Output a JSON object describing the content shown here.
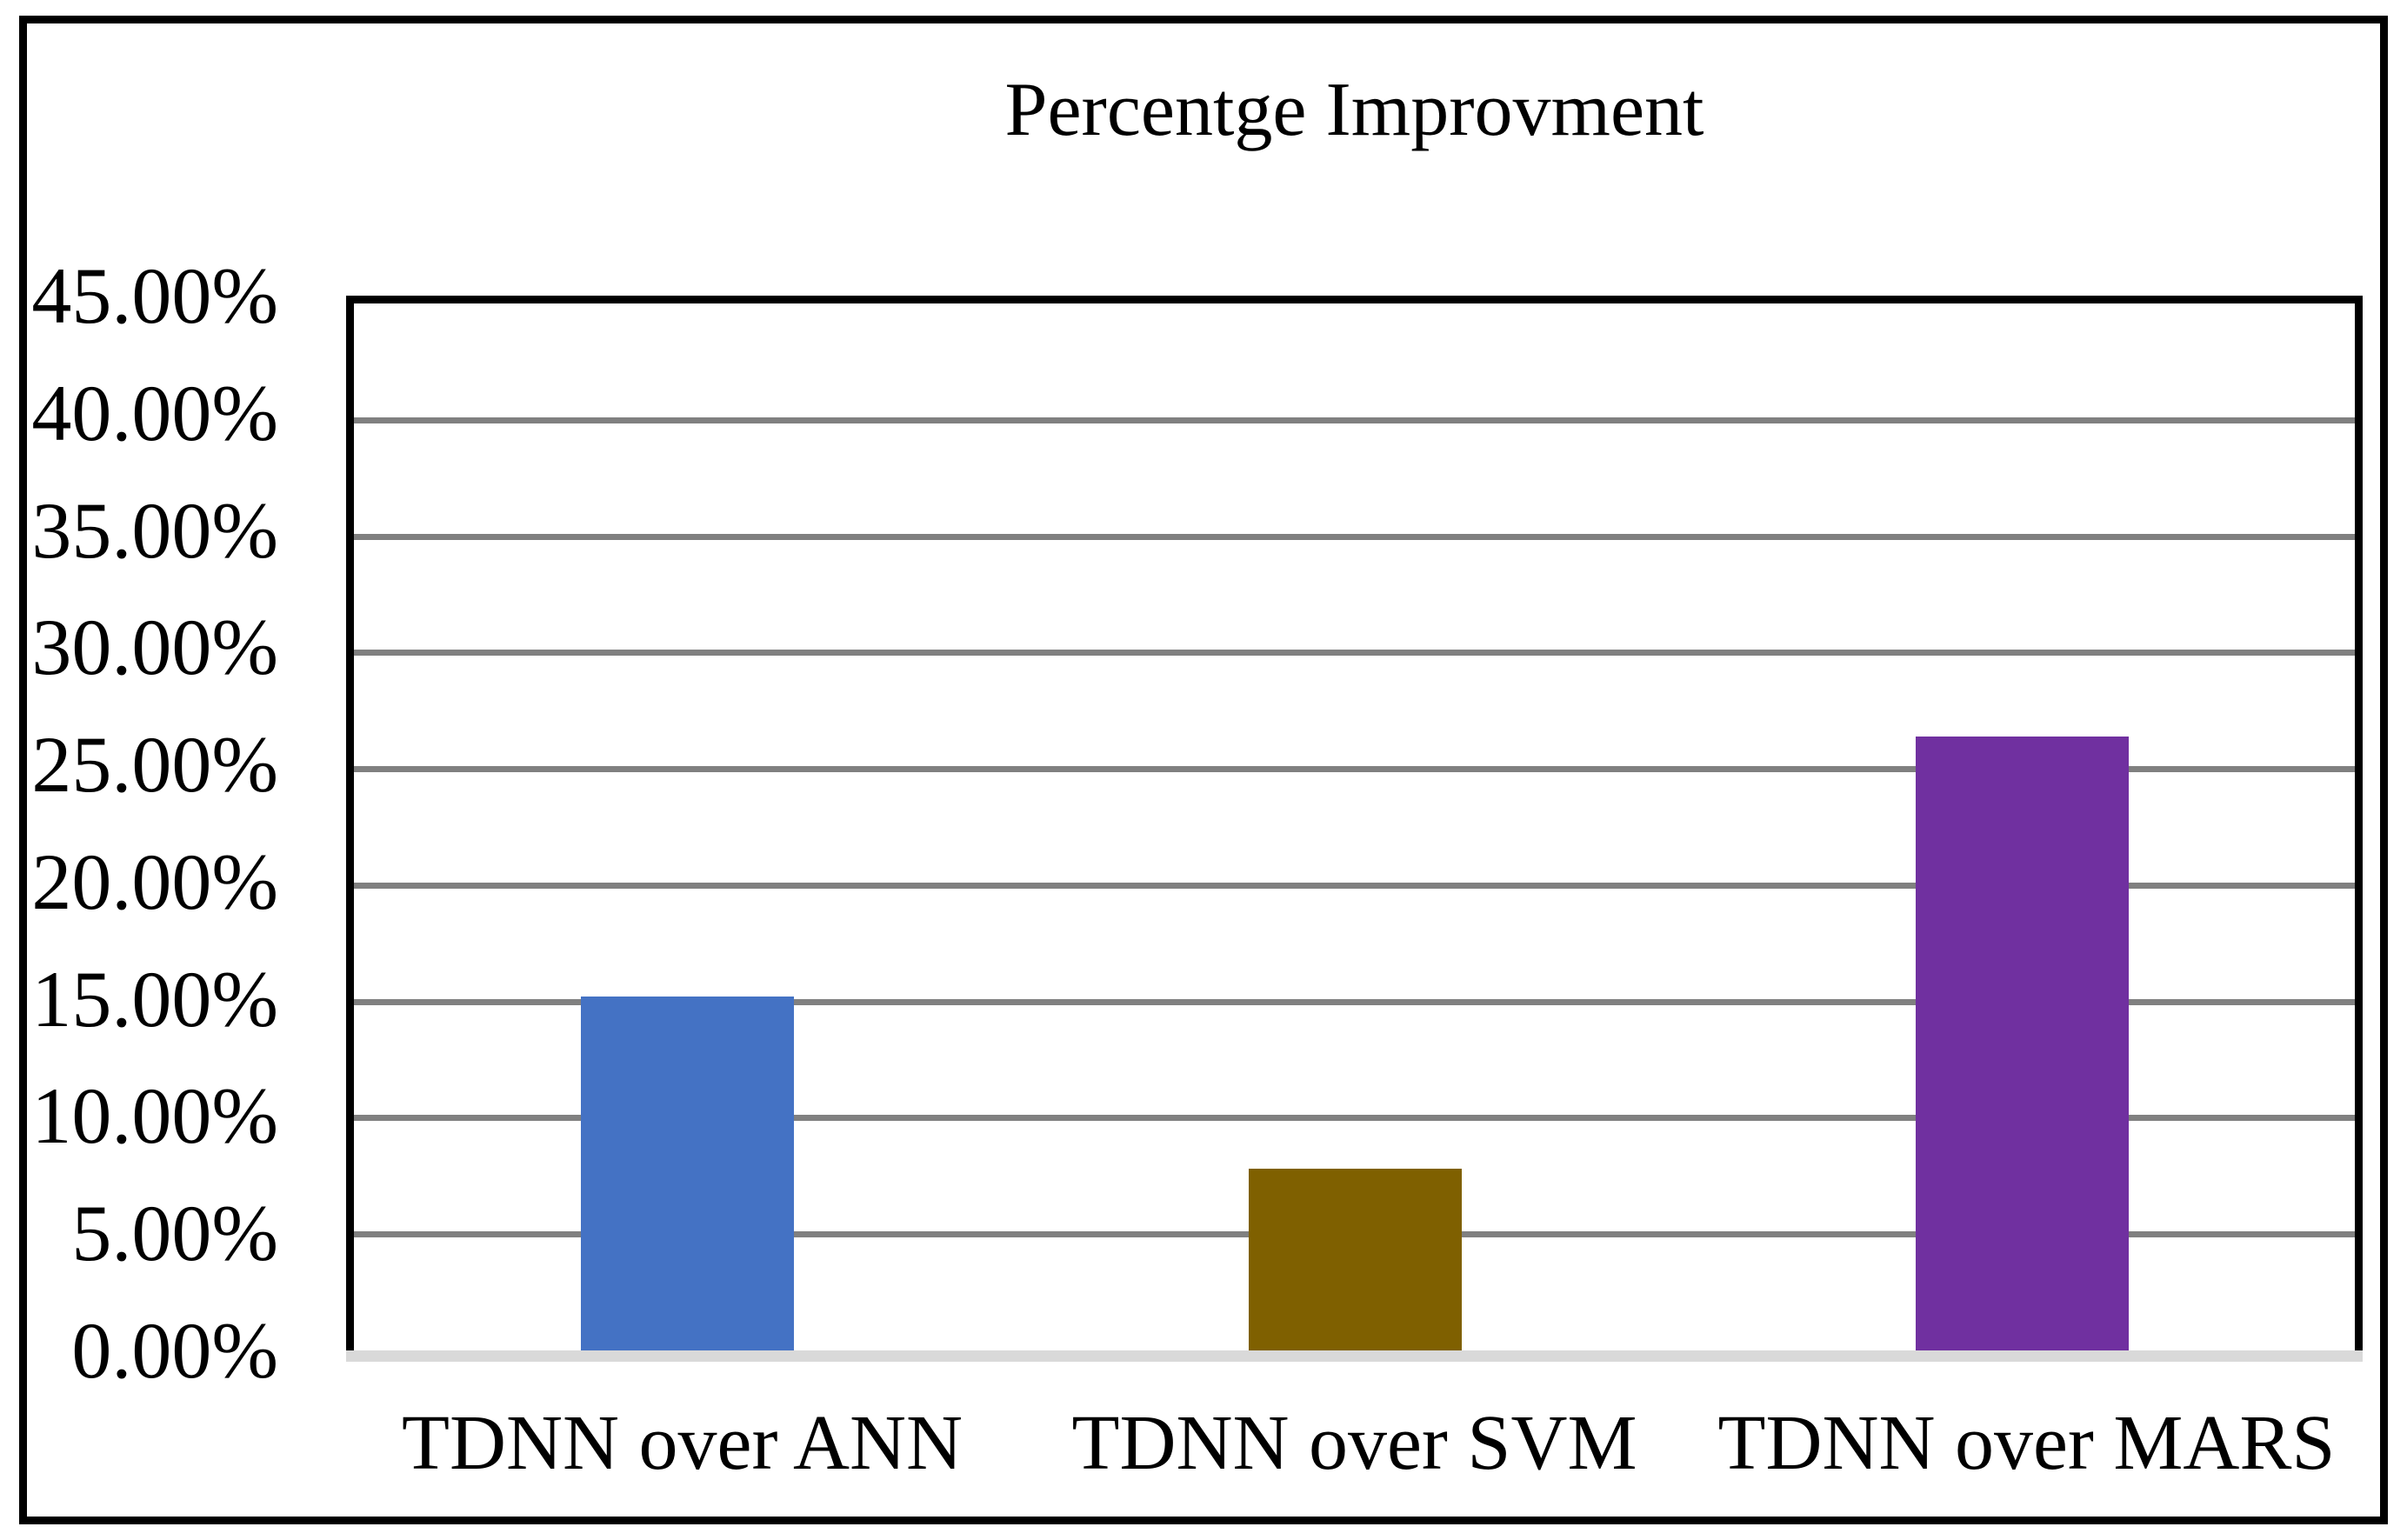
{
  "chart_data": {
    "type": "bar",
    "title": "Percentge Improvment",
    "categories": [
      "TDNN over ANN",
      "TDNN over SVM",
      "TDNN over MARS"
    ],
    "values": [
      15.2,
      7.8,
      26.4
    ],
    "unit": "%",
    "bar_colors": [
      "#4472C4",
      "#7F6000",
      "#7030A0"
    ],
    "ylim": [
      0,
      45
    ],
    "y_tick_step": 5,
    "y_tick_labels": [
      "45.00%",
      "40.00%",
      "35.00%",
      "30.00%",
      "25.00%",
      "20.00%",
      "15.00%",
      "10.00%",
      "5.00%",
      "0.00%"
    ],
    "grid": true,
    "legend": false,
    "colors": {
      "gridline": "#808080",
      "baseline": "#D9D9D9",
      "plot_border": "#000000",
      "outer_border": "#000000",
      "background": "#FFFFFF",
      "text": "#000000"
    }
  }
}
